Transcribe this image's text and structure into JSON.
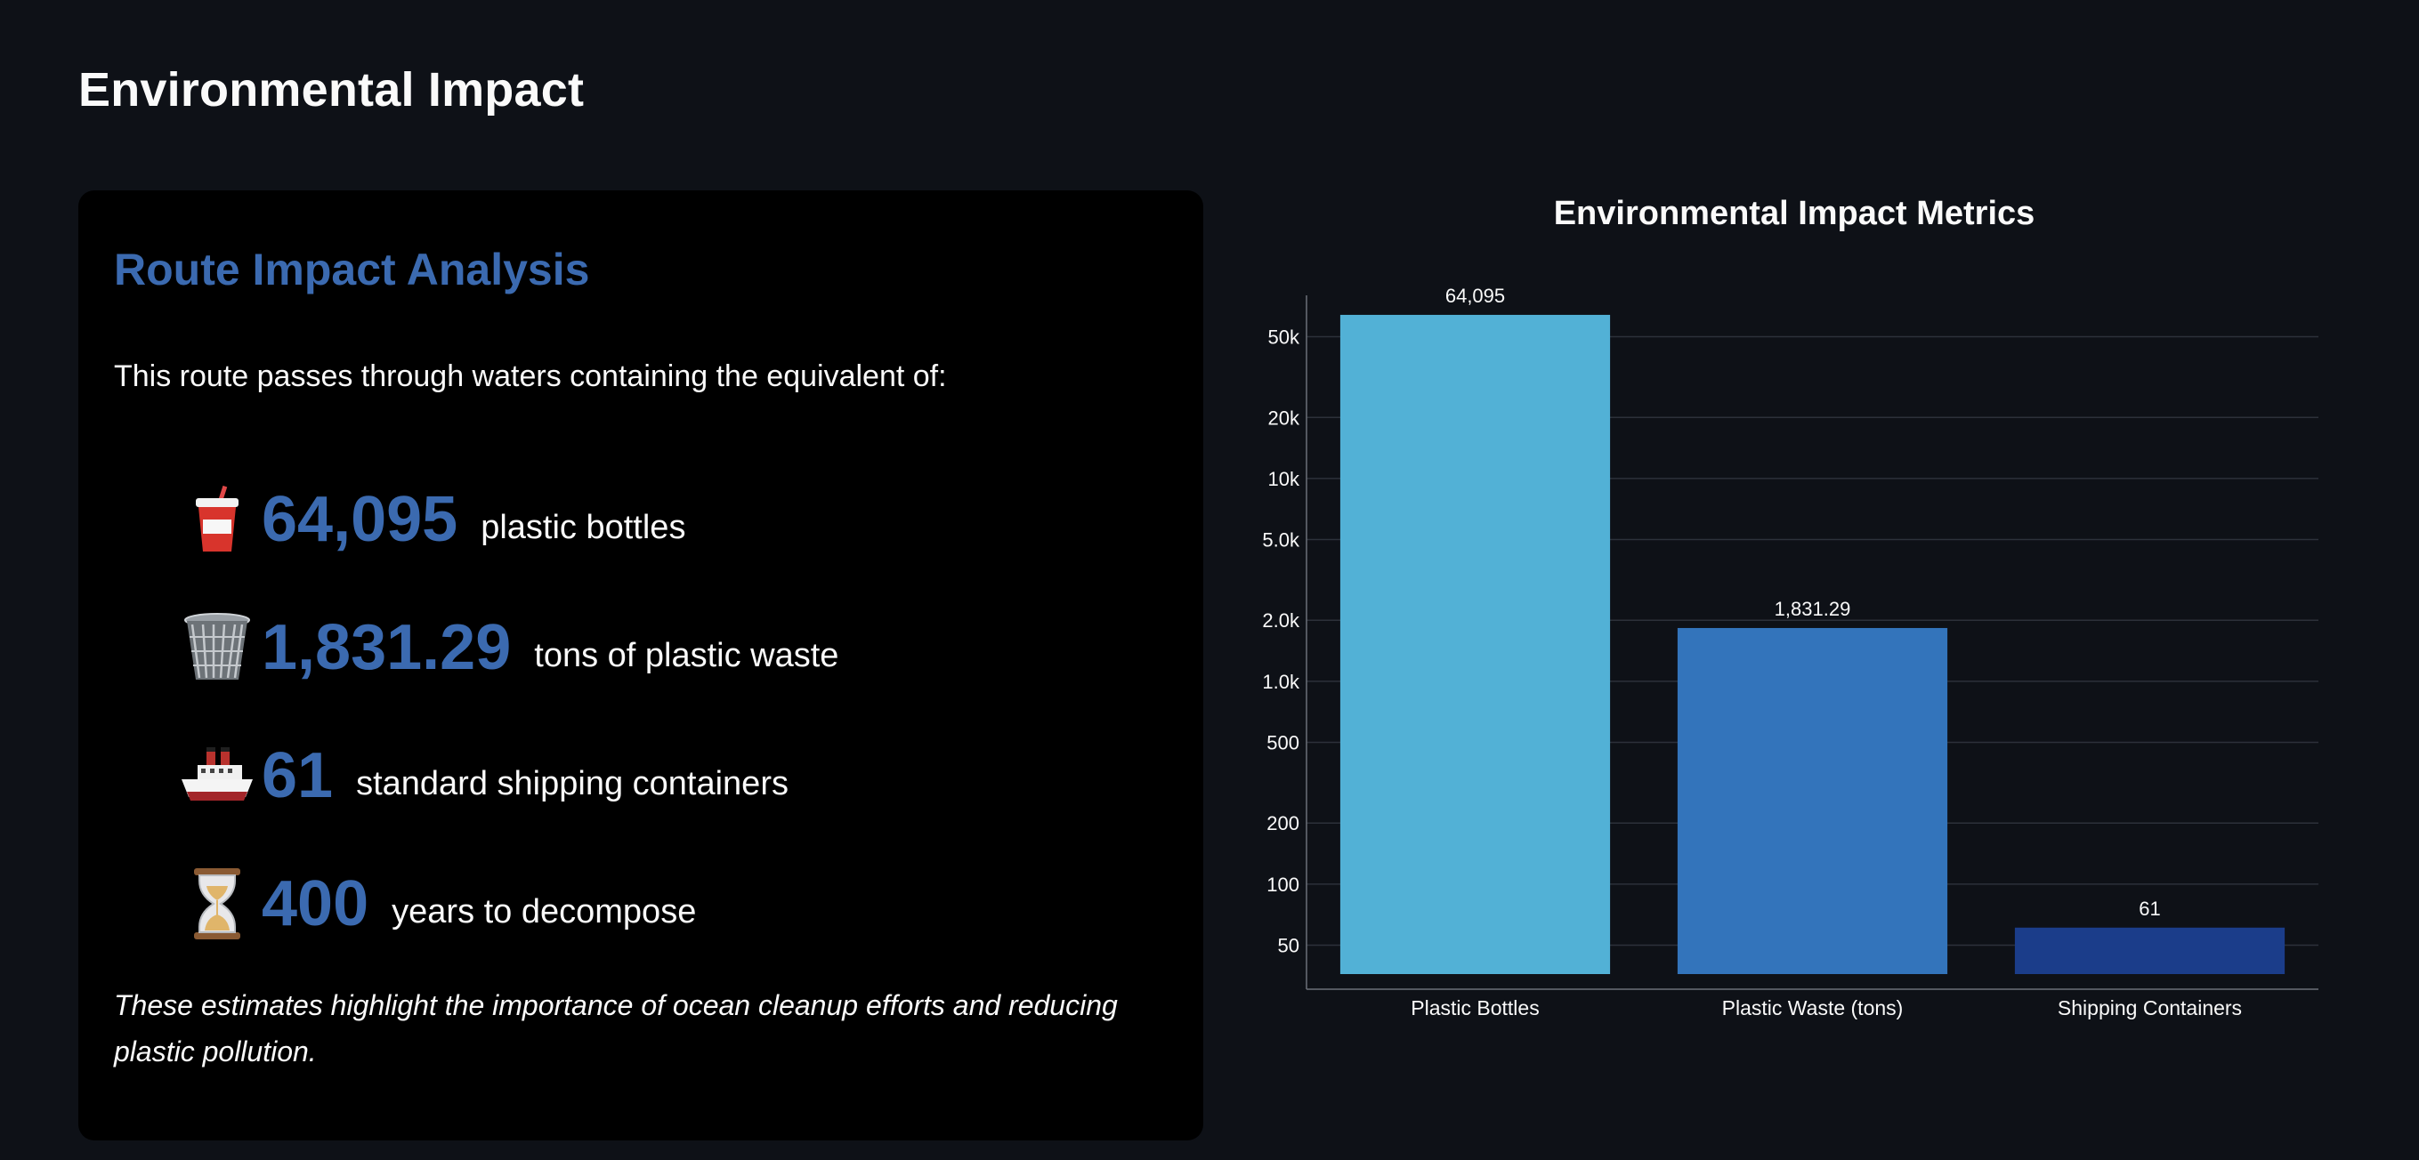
{
  "page": {
    "title": "Environmental Impact"
  },
  "card": {
    "heading": "Route Impact Analysis",
    "intro": "This route passes through waters containing the equivalent of:",
    "metrics": [
      {
        "icon": "cup-with-straw-icon",
        "value": "64,095",
        "label": "plastic bottles"
      },
      {
        "icon": "wastebasket-icon",
        "value": "1,831.29",
        "label": "tons of plastic waste"
      },
      {
        "icon": "ship-icon",
        "value": "61",
        "label": "standard shipping containers"
      },
      {
        "icon": "hourglass-icon",
        "value": "400",
        "label": "years to decompose"
      }
    ],
    "footnote": "These estimates highlight the importance of ocean cleanup efforts and reducing plastic pollution."
  },
  "colors": {
    "background": "#0e1117",
    "card_background": "#000000",
    "accent": "#3b6ab0",
    "text": "#fafafa"
  },
  "chart_data": {
    "type": "bar",
    "title": "Environmental Impact Metrics",
    "xlabel": "",
    "ylabel": "",
    "y_scale": "log",
    "grid": true,
    "legend": "none",
    "categories": [
      "Plastic Bottles",
      "Plastic Waste (tons)",
      "Shipping Containers"
    ],
    "values": [
      64095,
      1831.29,
      61
    ],
    "data_labels": [
      "64,095",
      "1,831.29",
      "61"
    ],
    "bar_colors": [
      "#52b1d6",
      "#3374bb",
      "#1b3d8a"
    ],
    "y_ticks": [
      {
        "value": 50,
        "label": "50"
      },
      {
        "value": 100,
        "label": "100"
      },
      {
        "value": 200,
        "label": "200"
      },
      {
        "value": 500,
        "label": "500"
      },
      {
        "value": 1000,
        "label": "1.0k"
      },
      {
        "value": 2000,
        "label": "2.0k"
      },
      {
        "value": 5000,
        "label": "5.0k"
      },
      {
        "value": 10000,
        "label": "10k"
      },
      {
        "value": 20000,
        "label": "20k"
      },
      {
        "value": 50000,
        "label": "50k"
      }
    ]
  }
}
